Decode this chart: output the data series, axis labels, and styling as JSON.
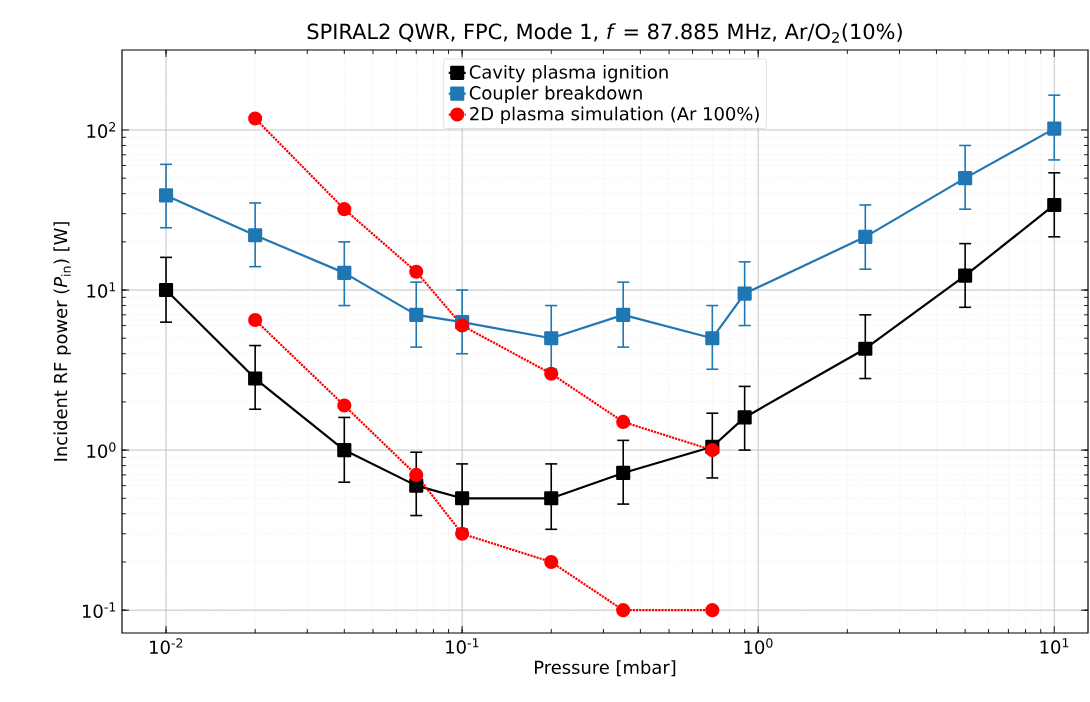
{
  "chart_data": {
    "type": "line",
    "title": "SPIRAL2 QWR, FPC, Mode 1, *f* = 87.885 MHz, Ar/O$_{2}$(10%)",
    "xlabel": "Pressure [mbar]",
    "ylabel": "Incident RF power (*P*$_{in}$) [W]",
    "log": "xy",
    "grid": true,
    "legend": "top",
    "xlim": [
      0.0071,
      13
    ],
    "ylim": [
      0.072,
      316
    ],
    "xticks": [
      {
        "value": 0.01,
        "label": "10$^{-2}$"
      },
      {
        "value": 0.1,
        "label": "10$^{-1}$"
      },
      {
        "value": 1,
        "label": "10$^{0}$"
      },
      {
        "value": 10,
        "label": "10$^{1}$"
      }
    ],
    "yticks": [
      {
        "value": 0.1,
        "label": "10$^{-1}$"
      },
      {
        "value": 1,
        "label": "10$^{0}$"
      },
      {
        "value": 10,
        "label": "10$^{1}$"
      },
      {
        "value": 100,
        "label": "10$^{2}$"
      }
    ],
    "series": [
      {
        "name": "Cavity plasma ignition",
        "color": "#000000",
        "marker": "square",
        "line_style": "solid",
        "x": [
          0.01,
          0.02,
          0.04,
          0.07,
          0.1,
          0.2,
          0.35,
          0.7,
          0.9,
          2.3,
          5,
          10
        ],
        "values": [
          10,
          2.8,
          1.0,
          0.6,
          0.5,
          0.5,
          0.72,
          1.05,
          1.6,
          4.3,
          12.3,
          34
        ],
        "errors": [
          [
            6.3,
            16
          ],
          [
            1.8,
            4.5
          ],
          [
            0.63,
            1.6
          ],
          [
            0.39,
            0.97
          ],
          [
            0.32,
            0.82
          ],
          [
            0.32,
            0.82
          ],
          [
            0.46,
            1.15
          ],
          [
            0.67,
            1.7
          ],
          [
            1.0,
            2.5
          ],
          [
            2.8,
            7
          ],
          [
            7.8,
            19.5
          ],
          [
            21.5,
            54
          ]
        ]
      },
      {
        "name": "Coupler breakdown",
        "color": "#1f77b4",
        "marker": "square",
        "line_style": "solid",
        "x": [
          0.01,
          0.02,
          0.04,
          0.07,
          0.1,
          0.2,
          0.35,
          0.7,
          0.9,
          2.3,
          5,
          10
        ],
        "values": [
          39,
          22,
          12.8,
          7,
          6.3,
          5,
          7,
          5,
          9.5,
          21.5,
          50,
          102
        ],
        "errors": [
          [
            24.5,
            61
          ],
          [
            14,
            35
          ],
          [
            8,
            20
          ],
          [
            4.4,
            11.2
          ],
          [
            4,
            10
          ],
          [
            3.2,
            8
          ],
          [
            4.4,
            11.2
          ],
          [
            3.2,
            8
          ],
          [
            6,
            15
          ],
          [
            13.5,
            34
          ],
          [
            32,
            80
          ],
          [
            65,
            165
          ]
        ]
      },
      {
        "name": "2D plasma simulation (Ar 100%)",
        "color": "#ff0000",
        "marker": "circle",
        "line_style": "dotted",
        "x": [
          0.02,
          0.04,
          0.07,
          0.1,
          0.2,
          0.35,
          0.7
        ],
        "values": [
          118,
          32,
          13,
          6,
          3,
          1.5,
          1.0
        ]
      },
      {
        "color": "#ff0000",
        "marker": "circle",
        "line_style": "dotted",
        "x": [
          0.02,
          0.04,
          0.07,
          0.1,
          0.2,
          0.35,
          0.7
        ],
        "values": [
          6.5,
          1.9,
          0.7,
          0.3,
          0.2,
          0.1,
          0.1
        ]
      }
    ]
  }
}
